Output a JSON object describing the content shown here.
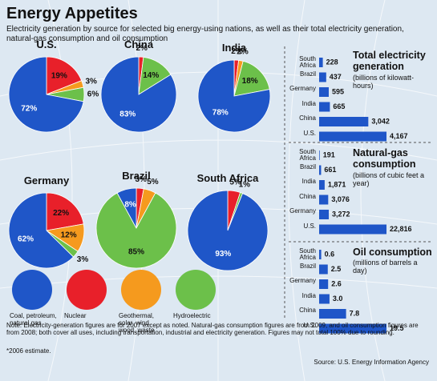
{
  "title": "Energy Appetites",
  "subtitle": "Electricity generation by source for selected big energy-using nations, as well as their total electricity generation, natural-gas consumption and oil consumption",
  "chart_data": [
    {
      "type": "pie",
      "categories": [
        "Coal, petroleum, natural gas",
        "Nuclear",
        "Geothermal, solar, wind, wood, waste",
        "Hydroelectric"
      ],
      "colors": [
        "#1f56c8",
        "#e8202a",
        "#f59a1e",
        "#6cc04a"
      ],
      "series": [
        {
          "name": "U.S.",
          "values": [
            72,
            19,
            3,
            6
          ],
          "value_labels": [
            "72%",
            "19%",
            "3%",
            "6%"
          ]
        },
        {
          "name": "China",
          "values": [
            83,
            2,
            null,
            14
          ],
          "value_labels": [
            "83%",
            "2%",
            null,
            "14%"
          ]
        },
        {
          "name": "India",
          "values": [
            78,
            2,
            2,
            18
          ],
          "value_labels": [
            "78%",
            "2%",
            "2%",
            "18%"
          ]
        },
        {
          "name": "Germany",
          "values": [
            62,
            22,
            12,
            3
          ],
          "value_labels": [
            "62%",
            "22%",
            "12%",
            "3%"
          ]
        },
        {
          "name": "Brazil",
          "values": [
            8,
            3,
            5,
            85
          ],
          "value_labels": [
            "8%",
            "3%",
            "5%",
            "85%"
          ]
        },
        {
          "name": "South Africa",
          "values": [
            93,
            5,
            null,
            1
          ],
          "value_labels": [
            "93%",
            "5%",
            null,
            "1%"
          ]
        }
      ]
    },
    {
      "type": "bar",
      "orientation": "horizontal",
      "color": "#1f56c8",
      "title": "Total electricity generation",
      "subtitle": "(billions of kilowatt-hours)",
      "categories": [
        "South Africa",
        "Brazil",
        "Germany",
        "India",
        "China",
        "U.S."
      ],
      "values": [
        228,
        437,
        595,
        665,
        3042,
        4167
      ],
      "value_labels": [
        "228",
        "437",
        "595",
        "665",
        "3,042",
        "4,167"
      ]
    },
    {
      "type": "bar",
      "orientation": "horizontal",
      "color": "#1f56c8",
      "title": "Natural-gas consumption",
      "subtitle": "(billions of cubic feet a year)",
      "categories": [
        "South Africa",
        "Brazil",
        "India",
        "China",
        "Germany",
        "U.S."
      ],
      "values": [
        191,
        661,
        1871,
        3076,
        3272,
        22816
      ],
      "value_labels": [
        "191",
        "661",
        "1,871",
        "3,076",
        "3,272",
        "22,816"
      ]
    },
    {
      "type": "bar",
      "orientation": "horizontal",
      "color": "#1f56c8",
      "title": "Oil consumption",
      "subtitle": "(millions of barrels a day)",
      "categories": [
        "South Africa",
        "Brazil",
        "Germany",
        "India",
        "China",
        "U.S."
      ],
      "values": [
        0.6,
        2.5,
        2.6,
        3,
        7.8,
        19.5
      ],
      "value_labels": [
        "0.6",
        "2.5",
        "2.6",
        "3.0",
        "7.8",
        "19.5"
      ]
    }
  ],
  "notes": "Note: Electricity-generation figures are for 2007 except as noted. Natural-gas consumption figures are from 2009, and oil consumption figures are from 2008; both cover all uses, including transportation, industrial and electricity generation. Figures may not total 100% due to rounding.",
  "footnote": "*2006 estimate.",
  "source": "Source: U.S. Energy Information Agency"
}
